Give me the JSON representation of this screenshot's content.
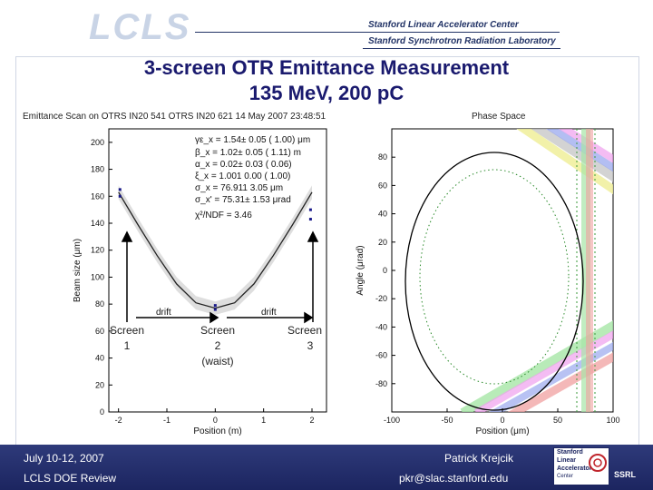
{
  "header": {
    "logo_text": "LCLS",
    "lab_line1": "Stanford Linear Accelerator Center",
    "lab_line2": "Stanford Synchrotron Radiation Laboratory"
  },
  "slide": {
    "title_line1": "3-screen OTR Emittance Measurement",
    "title_line2": "135 MeV, 200 pC"
  },
  "left_plot": {
    "header": "Emittance Scan on OTRS IN20 541 OTRS IN20 621 14 May 2007 23:48:51",
    "fit_params": [
      "γε_x = 1.54± 0.05 ( 1.00) μm",
      "β_x = 1.02± 0.05 ( 1.11) m",
      "α_x = 0.02± 0.03 ( 0.06)",
      "ξ_x = 1.001 0.00 ( 1.00)",
      "σ_x = 76.911 3.05 μm",
      "σ_x' = 75.31± 1.53 μrad",
      "χ²/NDF = 3.46"
    ],
    "drift_labels": [
      "drift",
      "drift"
    ],
    "screen_labels": [
      [
        "Screen",
        "1"
      ],
      [
        "Screen",
        "2",
        "(waist)"
      ],
      [
        "Screen",
        "3"
      ]
    ]
  },
  "right_plot": {
    "header": "Phase Space"
  },
  "chart_data": [
    {
      "type": "scatter",
      "title": "Emittance Scan on OTRS IN20 541 OTRS IN20 621 14 May 2007 23:48:51",
      "xlabel": "Position (m)",
      "ylabel": "Beam size (μm)",
      "xlim": [
        -2.2,
        2.3
      ],
      "ylim": [
        0,
        210
      ],
      "x_ticks": [
        -2,
        -1,
        0,
        1,
        2
      ],
      "y_ticks": [
        0,
        20,
        40,
        60,
        80,
        100,
        120,
        140,
        160,
        180,
        200
      ],
      "points": [
        {
          "x": -1.97,
          "y": 165
        },
        {
          "x": -1.97,
          "y": 160
        },
        {
          "x": 0,
          "y": 79
        },
        {
          "x": 0,
          "y": 76
        },
        {
          "x": 1.97,
          "y": 150
        },
        {
          "x": 1.97,
          "y": 143
        }
      ],
      "fit_curve": {
        "x": [
          -2,
          -1.6,
          -1.2,
          -0.8,
          -0.4,
          0,
          0.4,
          0.8,
          1.2,
          1.6,
          2
        ],
        "y": [
          163,
          139,
          116,
          95,
          81,
          77,
          81,
          95,
          116,
          139,
          163
        ]
      }
    },
    {
      "type": "line",
      "title": "Phase Space",
      "xlabel": "Position (μm)",
      "ylabel": "Angle (μrad)",
      "xlim": [
        -100,
        100
      ],
      "ylim": [
        -100,
        100
      ],
      "x_ticks": [
        -100,
        -50,
        0,
        50,
        100
      ],
      "y_ticks": [
        80,
        60,
        40,
        20,
        0,
        -20,
        -40,
        -60,
        -80
      ]
    }
  ],
  "footer": {
    "date": "July 10-12, 2007",
    "event": "LCLS DOE Review",
    "author": "Patrick Krejcik",
    "email": "pkr@slac.stanford.edu",
    "logo_lines": [
      "Stanford",
      "Linear",
      "Accelerator",
      "Center"
    ],
    "ssrl_text": "SSRL"
  }
}
